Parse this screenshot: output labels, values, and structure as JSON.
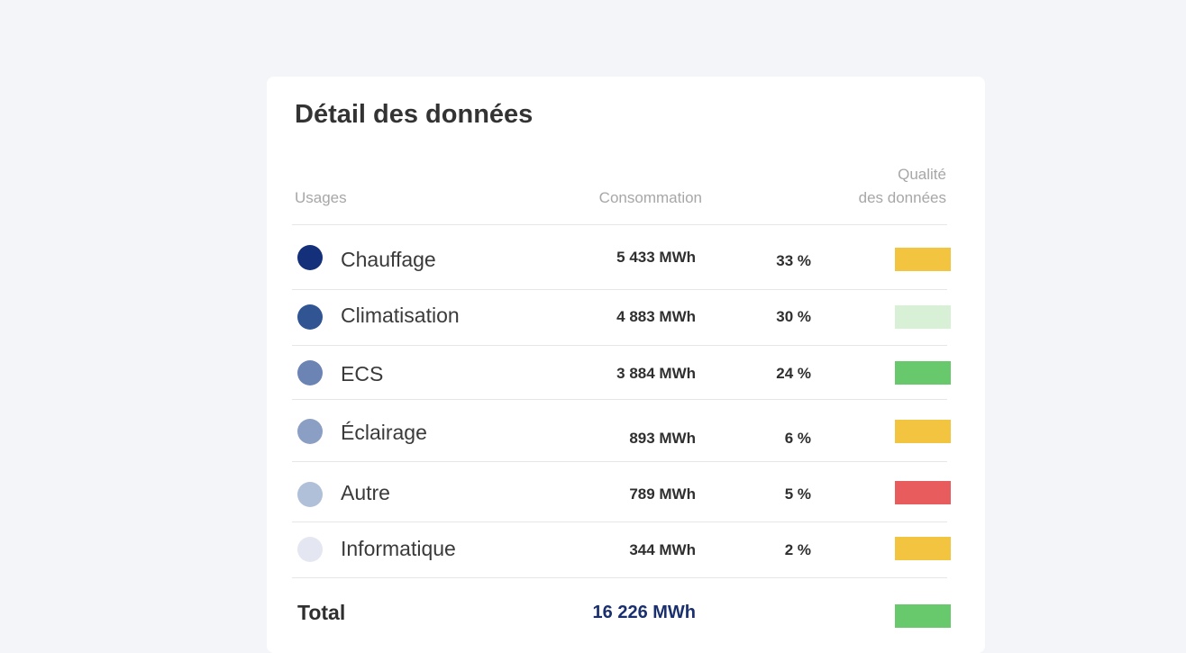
{
  "card": {
    "title": "Détail des données",
    "headers": {
      "usages": "Usages",
      "consumption": "Consommation",
      "quality_line1": "Qualité",
      "quality_line2": "des données"
    },
    "rows": [
      {
        "label": "Chauffage",
        "value": "5 433 MWh",
        "percent": "33 %",
        "dot_color": "#15307a",
        "quality_color": "#f2c440"
      },
      {
        "label": "Climatisation",
        "value": "4 883 MWh",
        "percent": "30 %",
        "dot_color": "#305592",
        "quality_color": "#d8f1d6"
      },
      {
        "label": "ECS",
        "value": "3 884 MWh",
        "percent": "24 %",
        "dot_color": "#6b84b3",
        "quality_color": "#68c86c"
      },
      {
        "label": "Éclairage",
        "value": "893 MWh",
        "percent": "6 %",
        "dot_color": "#8b9fc4",
        "quality_color": "#f2c440"
      },
      {
        "label": "Autre",
        "value": "789 MWh",
        "percent": "5 %",
        "dot_color": "#b0c0d8",
        "quality_color": "#e85c5e"
      },
      {
        "label": "Informatique",
        "value": "344 MWh",
        "percent": "2 %",
        "dot_color": "#e4e7f1",
        "quality_color": "#f2c440"
      }
    ],
    "total": {
      "label": "Total",
      "value": "16 226 MWh",
      "quality_color": "#68c86c"
    }
  }
}
